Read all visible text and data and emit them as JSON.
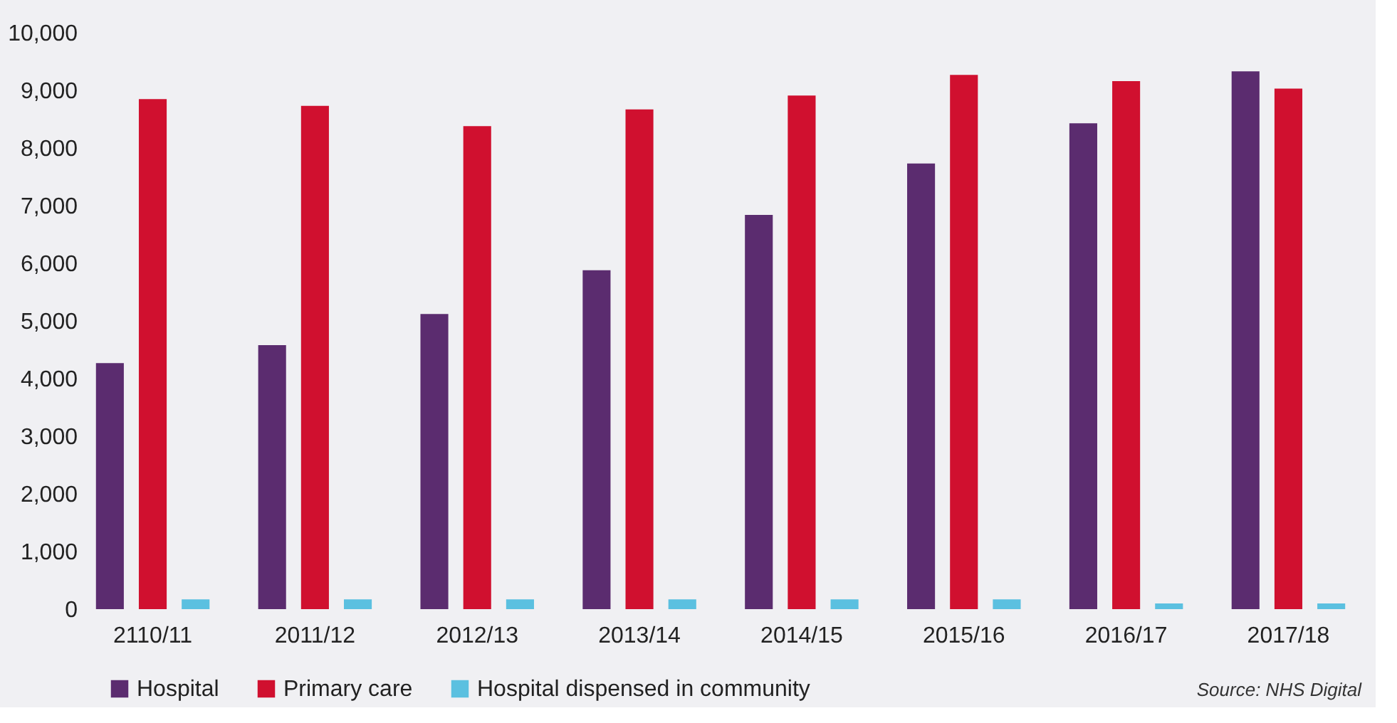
{
  "chart_data": {
    "type": "bar",
    "categories": [
      "2110/11",
      "2011/12",
      "2012/13",
      "2013/14",
      "2014/15",
      "2015/16",
      "2016/17",
      "2017/18"
    ],
    "series": [
      {
        "name": "Hospital",
        "color": "#5b2c6f",
        "values": [
          4270,
          4580,
          5120,
          5880,
          6840,
          7730,
          8430,
          9330
        ]
      },
      {
        "name": "Primary care",
        "color": "#d0102f",
        "values": [
          8850,
          8730,
          8380,
          8670,
          8910,
          9270,
          9160,
          9030
        ]
      },
      {
        "name": "Hospital dispensed in community",
        "color": "#5bc0e0",
        "values": [
          170,
          170,
          170,
          170,
          170,
          170,
          100,
          100
        ]
      }
    ],
    "ylim": [
      0,
      10000
    ],
    "yticks": [
      0,
      {
        "value": 1000,
        "label": "1,000"
      },
      {
        "value": 2000,
        "label": "2,000"
      },
      {
        "value": 3000,
        "label": "3,000"
      },
      {
        "value": 4000,
        "label": "4,000"
      },
      {
        "value": 5000,
        "label": "5,000"
      },
      {
        "value": 6000,
        "label": "6,000"
      },
      {
        "value": 7000,
        "label": "7,000"
      },
      {
        "value": 8000,
        "label": "8,000"
      },
      {
        "value": 9000,
        "label": "9,000"
      },
      {
        "value": 10000,
        "label": "10,000"
      }
    ],
    "grid": false,
    "legend": "bottom left",
    "annotations": [
      "Source: NHS Digital"
    ]
  }
}
